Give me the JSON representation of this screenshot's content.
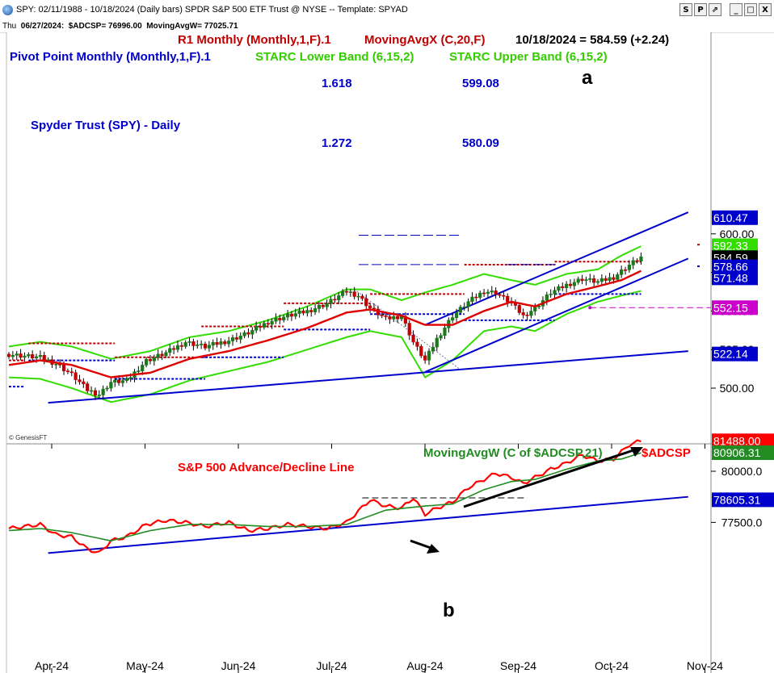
{
  "window": {
    "title": "SPY: 02/11/1988 - 10/18/2024 (Daily bars)  SPDR S&P 500 ETF Trust @ NYSE  --  Template: SPYAD",
    "buttons": [
      "S",
      "P",
      "⇗",
      "_",
      "□",
      "X"
    ]
  },
  "info_bar": {
    "day": "Thu",
    "date": "06/27/2024:",
    "adcsp": "$ADCSP= 76996.00",
    "mavg": "MovingAvgW= 77025.71"
  },
  "top_panel": {
    "legend_line1_a": "R1 Monthly (Monthly,1,F).1",
    "legend_line1_b": "MovingAvgX (C,20,F)",
    "legend_line1_c": "10/18/2024 = 584.59 (+2.24)",
    "legend_line2_a": "Pivot Point Monthly (Monthly,1,F).1",
    "legend_line2_b": "STARC Lower Band (6,15,2)",
    "legend_line2_c": "STARC Upper Band (6,15,2)",
    "chart_title": "Spyder Trust (SPY) - Daily",
    "fib1_ratio": "1.618",
    "fib1_price": "599.08",
    "fib2_ratio": "1.272",
    "fib2_price": "580.09",
    "label_a": "a",
    "watermark": "© GenesisFT"
  },
  "bottom_panel": {
    "title": "S&P 500 Advance/Decline Line",
    "legend": "MovingAvgW (C of $ADCSP,21)",
    "legend_series": "$ADCSP",
    "label_b": "b"
  },
  "colors": {
    "price_up": "#1a7a1a",
    "price_down": "#c00000",
    "ma": "#e00000",
    "starc": "#33dd00",
    "trend": "#0000cc",
    "r1": "#c00000",
    "pivot": "#0000cc",
    "ad_line": "#ff0000",
    "ad_ma": "#228b22"
  },
  "chart_data": [
    {
      "type": "candlestick",
      "title": "Spyder Trust (SPY) - Daily",
      "ylim": [
        485,
        613
      ],
      "y_ticks": [
        500,
        525,
        550,
        575,
        600
      ],
      "x_ticks": [
        "Apr-24",
        "May-24",
        "Jun-24",
        "Jul-24",
        "Aug-24",
        "Sep-24",
        "Oct-24",
        "Nov-24"
      ],
      "price_tags": [
        {
          "value": 610.47,
          "color": "#0000cc"
        },
        {
          "value": 592.33,
          "color": "#33dd00"
        },
        {
          "value": 584.59,
          "color": "#000000"
        },
        {
          "value": 578.66,
          "color": "#0000cc"
        },
        {
          "value": 571.48,
          "color": "#0000cc"
        },
        {
          "value": 552.15,
          "color": "#cc00cc"
        },
        {
          "value": 522.14,
          "color": "#0000cc"
        }
      ],
      "close_series": [
        {
          "t": 0,
          "v": 522
        },
        {
          "t": 4,
          "v": 521
        },
        {
          "t": 8,
          "v": 520
        },
        {
          "t": 12,
          "v": 516
        },
        {
          "t": 16,
          "v": 509
        },
        {
          "t": 20,
          "v": 499
        },
        {
          "t": 23,
          "v": 496
        },
        {
          "t": 26,
          "v": 504
        },
        {
          "t": 30,
          "v": 505
        },
        {
          "t": 35,
          "v": 518
        },
        {
          "t": 40,
          "v": 523
        },
        {
          "t": 45,
          "v": 530
        },
        {
          "t": 50,
          "v": 527
        },
        {
          "t": 56,
          "v": 531
        },
        {
          "t": 61,
          "v": 536
        },
        {
          "t": 66,
          "v": 543
        },
        {
          "t": 71,
          "v": 547
        },
        {
          "t": 76,
          "v": 550
        },
        {
          "t": 81,
          "v": 555
        },
        {
          "t": 86,
          "v": 563
        },
        {
          "t": 89,
          "v": 560
        },
        {
          "t": 92,
          "v": 552
        },
        {
          "t": 96,
          "v": 545
        },
        {
          "t": 100,
          "v": 547
        },
        {
          "t": 103,
          "v": 530
        },
        {
          "t": 106,
          "v": 518
        },
        {
          "t": 109,
          "v": 532
        },
        {
          "t": 113,
          "v": 547
        },
        {
          "t": 117,
          "v": 556
        },
        {
          "t": 121,
          "v": 563
        },
        {
          "t": 124,
          "v": 562
        },
        {
          "t": 128,
          "v": 555
        },
        {
          "t": 131,
          "v": 547
        },
        {
          "t": 134,
          "v": 552
        },
        {
          "t": 138,
          "v": 562
        },
        {
          "t": 142,
          "v": 567
        },
        {
          "t": 146,
          "v": 571
        },
        {
          "t": 150,
          "v": 569
        },
        {
          "t": 154,
          "v": 572
        },
        {
          "t": 158,
          "v": 580
        },
        {
          "t": 161,
          "v": 585
        }
      ],
      "ma20": [
        {
          "t": 0,
          "v": 515
        },
        {
          "t": 8,
          "v": 518
        },
        {
          "t": 16,
          "v": 515
        },
        {
          "t": 26,
          "v": 507
        },
        {
          "t": 36,
          "v": 510
        },
        {
          "t": 46,
          "v": 519
        },
        {
          "t": 56,
          "v": 524
        },
        {
          "t": 66,
          "v": 531
        },
        {
          "t": 76,
          "v": 539
        },
        {
          "t": 86,
          "v": 549
        },
        {
          "t": 92,
          "v": 551
        },
        {
          "t": 100,
          "v": 547
        },
        {
          "t": 106,
          "v": 541
        },
        {
          "t": 113,
          "v": 541
        },
        {
          "t": 121,
          "v": 550
        },
        {
          "t": 128,
          "v": 556
        },
        {
          "t": 134,
          "v": 553
        },
        {
          "t": 142,
          "v": 561
        },
        {
          "t": 150,
          "v": 566
        },
        {
          "t": 156,
          "v": 570
        },
        {
          "t": 161,
          "v": 576
        }
      ],
      "starc_upper": [
        {
          "t": 0,
          "v": 527
        },
        {
          "t": 8,
          "v": 530
        },
        {
          "t": 16,
          "v": 527
        },
        {
          "t": 26,
          "v": 519
        },
        {
          "t": 36,
          "v": 524
        },
        {
          "t": 46,
          "v": 533
        },
        {
          "t": 56,
          "v": 537
        },
        {
          "t": 66,
          "v": 544
        },
        {
          "t": 76,
          "v": 553
        },
        {
          "t": 86,
          "v": 564
        },
        {
          "t": 92,
          "v": 564
        },
        {
          "t": 100,
          "v": 557
        },
        {
          "t": 106,
          "v": 562
        },
        {
          "t": 113,
          "v": 567
        },
        {
          "t": 121,
          "v": 574
        },
        {
          "t": 128,
          "v": 570
        },
        {
          "t": 134,
          "v": 567
        },
        {
          "t": 142,
          "v": 574
        },
        {
          "t": 150,
          "v": 577
        },
        {
          "t": 156,
          "v": 586
        },
        {
          "t": 161,
          "v": 592
        }
      ],
      "starc_lower": [
        {
          "t": 0,
          "v": 507
        },
        {
          "t": 8,
          "v": 506
        },
        {
          "t": 16,
          "v": 500
        },
        {
          "t": 26,
          "v": 491
        },
        {
          "t": 36,
          "v": 496
        },
        {
          "t": 46,
          "v": 505
        },
        {
          "t": 56,
          "v": 511
        },
        {
          "t": 66,
          "v": 517
        },
        {
          "t": 76,
          "v": 525
        },
        {
          "t": 86,
          "v": 533
        },
        {
          "t": 92,
          "v": 537
        },
        {
          "t": 100,
          "v": 533
        },
        {
          "t": 106,
          "v": 507
        },
        {
          "t": 113,
          "v": 518
        },
        {
          "t": 121,
          "v": 537
        },
        {
          "t": 128,
          "v": 540
        },
        {
          "t": 134,
          "v": 537
        },
        {
          "t": 142,
          "v": 548
        },
        {
          "t": 150,
          "v": 556
        },
        {
          "t": 156,
          "v": 560
        },
        {
          "t": 161,
          "v": 563
        }
      ],
      "r1_monthly": [
        {
          "t0": 0,
          "t1": 4,
          "v": 518
        },
        {
          "t0": 5,
          "t1": 27,
          "v": 529
        },
        {
          "t0": 27,
          "t1": 50,
          "v": 520
        },
        {
          "t0": 49,
          "t1": 70,
          "v": 540
        },
        {
          "t0": 70,
          "t1": 92,
          "v": 555
        },
        {
          "t0": 92,
          "t1": 116,
          "v": 561
        },
        {
          "t0": 116,
          "t1": 139,
          "v": 580
        },
        {
          "t0": 139,
          "t1": 161,
          "v": 582
        }
      ],
      "pivot_monthly": [
        {
          "t0": 0,
          "t1": 4,
          "v": 501
        },
        {
          "t0": 5,
          "t1": 27,
          "v": 518
        },
        {
          "t0": 27,
          "t1": 50,
          "v": 506
        },
        {
          "t0": 49,
          "t1": 70,
          "v": 520
        },
        {
          "t0": 70,
          "t1": 92,
          "v": 538
        },
        {
          "t0": 92,
          "t1": 116,
          "v": 548
        },
        {
          "t0": 116,
          "t1": 139,
          "v": 544
        },
        {
          "t0": 139,
          "t1": 161,
          "v": 561
        }
      ],
      "trendlines": [
        {
          "t0": 10,
          "v0": 490.5,
          "t1": 173,
          "v1": 524
        },
        {
          "t0": 106,
          "v0": 510.5,
          "t1": 173,
          "v1": 584
        },
        {
          "t0": 106,
          "v0": 541,
          "t1": 173,
          "v1": 614
        }
      ],
      "fib_levels": [
        599.08,
        580.09
      ],
      "magenta_level": 552.15
    },
    {
      "type": "line",
      "title": "S&P 500 Advance/Decline Line",
      "ylim": [
        75900,
        82300
      ],
      "y_ticks": [
        77500,
        80000
      ],
      "price_tags": [
        {
          "value": 81488.0,
          "color": "#ff0000"
        },
        {
          "value": 80906.31,
          "color": "#228b22"
        },
        {
          "value": 78605.31,
          "color": "#0000cc"
        }
      ],
      "series": [
        {
          "name": "$ADCSP",
          "values": [
            {
              "t": 0,
              "v": 77200
            },
            {
              "t": 4,
              "v": 77300
            },
            {
              "t": 8,
              "v": 77400
            },
            {
              "t": 12,
              "v": 76900
            },
            {
              "t": 16,
              "v": 76800
            },
            {
              "t": 20,
              "v": 76200
            },
            {
              "t": 23,
              "v": 76000
            },
            {
              "t": 26,
              "v": 76600
            },
            {
              "t": 30,
              "v": 76800
            },
            {
              "t": 35,
              "v": 77400
            },
            {
              "t": 40,
              "v": 77600
            },
            {
              "t": 45,
              "v": 77500
            },
            {
              "t": 50,
              "v": 77300
            },
            {
              "t": 56,
              "v": 77500
            },
            {
              "t": 61,
              "v": 77100
            },
            {
              "t": 66,
              "v": 77200
            },
            {
              "t": 71,
              "v": 77400
            },
            {
              "t": 76,
              "v": 77300
            },
            {
              "t": 81,
              "v": 77200
            },
            {
              "t": 86,
              "v": 77500
            },
            {
              "t": 92,
              "v": 78600
            },
            {
              "t": 96,
              "v": 78300
            },
            {
              "t": 100,
              "v": 78200
            },
            {
              "t": 103,
              "v": 78700
            },
            {
              "t": 106,
              "v": 77900
            },
            {
              "t": 109,
              "v": 78200
            },
            {
              "t": 113,
              "v": 78500
            },
            {
              "t": 117,
              "v": 79200
            },
            {
              "t": 121,
              "v": 79600
            },
            {
              "t": 124,
              "v": 79900
            },
            {
              "t": 128,
              "v": 79700
            },
            {
              "t": 131,
              "v": 79400
            },
            {
              "t": 134,
              "v": 79700
            },
            {
              "t": 138,
              "v": 80100
            },
            {
              "t": 142,
              "v": 80400
            },
            {
              "t": 146,
              "v": 80800
            },
            {
              "t": 150,
              "v": 80500
            },
            {
              "t": 154,
              "v": 80600
            },
            {
              "t": 158,
              "v": 81300
            },
            {
              "t": 161,
              "v": 81490
            }
          ]
        },
        {
          "name": "MovingAvgW (C of $ADCSP,21)",
          "values": [
            {
              "t": 0,
              "v": 77100
            },
            {
              "t": 8,
              "v": 77200
            },
            {
              "t": 16,
              "v": 77000
            },
            {
              "t": 26,
              "v": 76600
            },
            {
              "t": 36,
              "v": 77100
            },
            {
              "t": 46,
              "v": 77400
            },
            {
              "t": 56,
              "v": 77400
            },
            {
              "t": 66,
              "v": 77300
            },
            {
              "t": 76,
              "v": 77300
            },
            {
              "t": 86,
              "v": 77400
            },
            {
              "t": 96,
              "v": 78100
            },
            {
              "t": 106,
              "v": 78300
            },
            {
              "t": 113,
              "v": 78400
            },
            {
              "t": 121,
              "v": 79100
            },
            {
              "t": 128,
              "v": 79500
            },
            {
              "t": 134,
              "v": 79600
            },
            {
              "t": 142,
              "v": 80100
            },
            {
              "t": 150,
              "v": 80500
            },
            {
              "t": 156,
              "v": 80600
            },
            {
              "t": 161,
              "v": 80900
            }
          ]
        }
      ],
      "trendline": {
        "t0": 10,
        "v0": 76000,
        "t1": 173,
        "v1": 78750
      },
      "resistance": {
        "t0": 90,
        "v0": 78700,
        "t1": 132,
        "v1": 78700
      }
    }
  ]
}
